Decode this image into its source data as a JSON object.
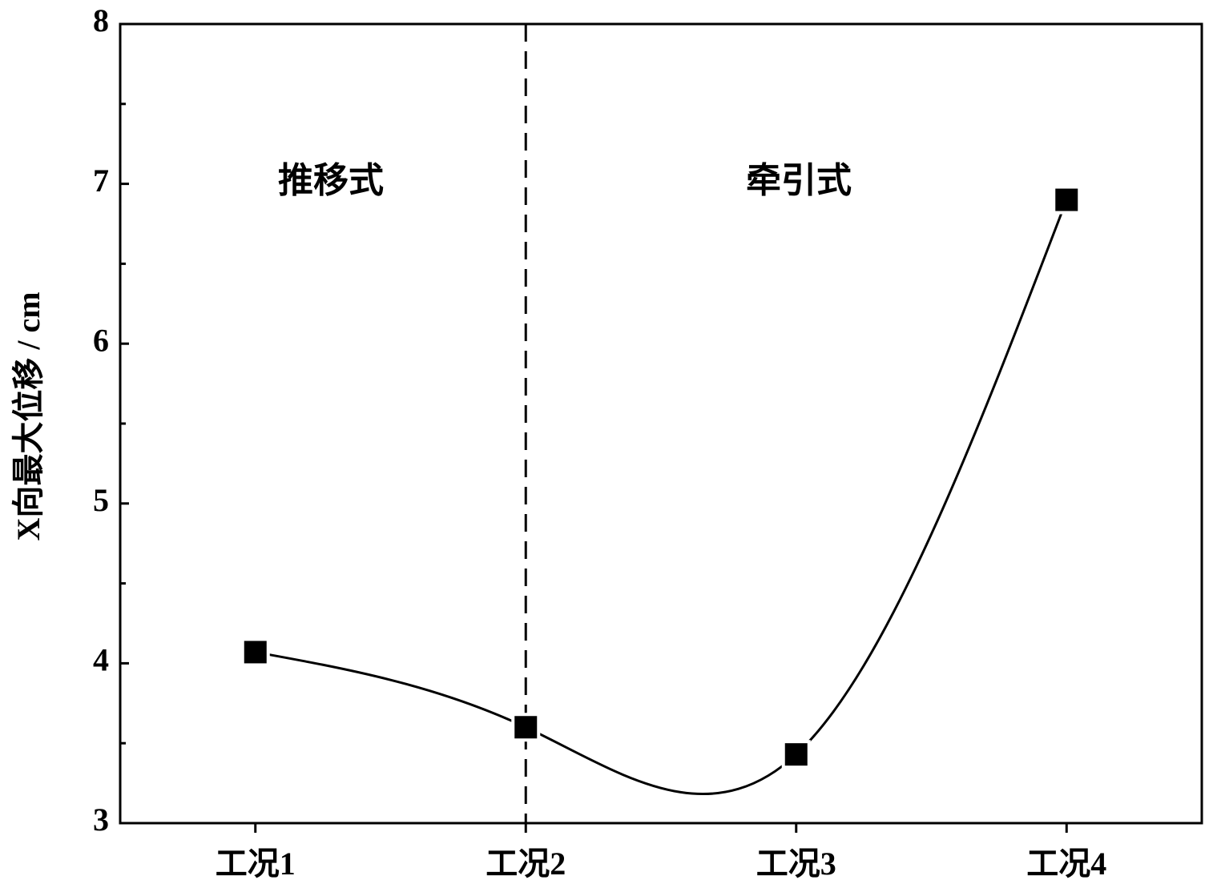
{
  "chart_data": {
    "type": "line",
    "y_label": "X向最大位移 / cm",
    "categories": [
      "工况1",
      "工况2",
      "工况3",
      "工况4"
    ],
    "values": [
      4.07,
      3.6,
      3.43,
      6.9
    ],
    "color": "#000000",
    "ylim": [
      3,
      8
    ],
    "yticks": [
      3,
      4,
      5,
      6,
      7,
      8
    ],
    "yminorticks": [
      3.5,
      4.5,
      5.5,
      6.5,
      7.5
    ],
    "annotations": [
      "推移式",
      "牵引式"
    ]
  }
}
